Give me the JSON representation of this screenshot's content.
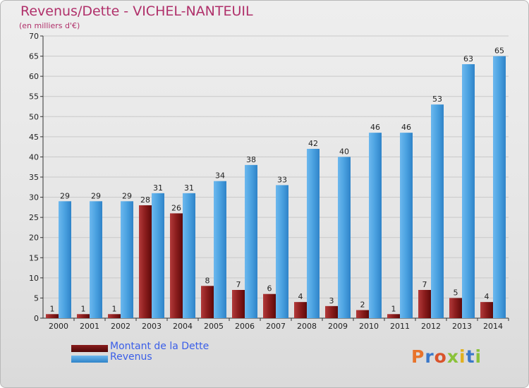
{
  "title": "Revenus/Dette - VICHEL-NANTEUIL",
  "subtitle": "(en milliers d'€)",
  "logo_text": "Proxiti",
  "colors": {
    "debt": "#7a1515",
    "debt_light": "#b23a3a",
    "revenue": "#3f97db",
    "revenue_light": "#62b1ea",
    "title": "#b0306a",
    "legend_text": "#3a5ee8"
  },
  "legend": [
    {
      "label": "Montant de la Dette",
      "color": "#6b0f0f"
    },
    {
      "label": "Revenus",
      "color": "#3f97db"
    }
  ],
  "chart_data": {
    "type": "bar",
    "categories": [
      "2000",
      "2001",
      "2002",
      "2003",
      "2004",
      "2005",
      "2006",
      "2007",
      "2008",
      "2009",
      "2010",
      "2011",
      "2012",
      "2013",
      "2014"
    ],
    "series": [
      {
        "name": "Montant de la Dette",
        "values": [
          1,
          1,
          1,
          28,
          26,
          8,
          7,
          6,
          4,
          3,
          2,
          1,
          7,
          5,
          4
        ]
      },
      {
        "name": "Revenus",
        "values": [
          29,
          29,
          29,
          31,
          31,
          34,
          38,
          33,
          42,
          40,
          46,
          46,
          53,
          63,
          65
        ]
      }
    ],
    "title": "Revenus/Dette - VICHEL-NANTEUIL",
    "ylabel": "(en milliers d'€)",
    "ylim": [
      0,
      70
    ],
    "yticks": [
      0,
      5,
      10,
      15,
      20,
      25,
      30,
      35,
      40,
      45,
      50,
      55,
      60,
      65,
      70
    ],
    "grid": true,
    "legend_position": "bottom-left"
  }
}
